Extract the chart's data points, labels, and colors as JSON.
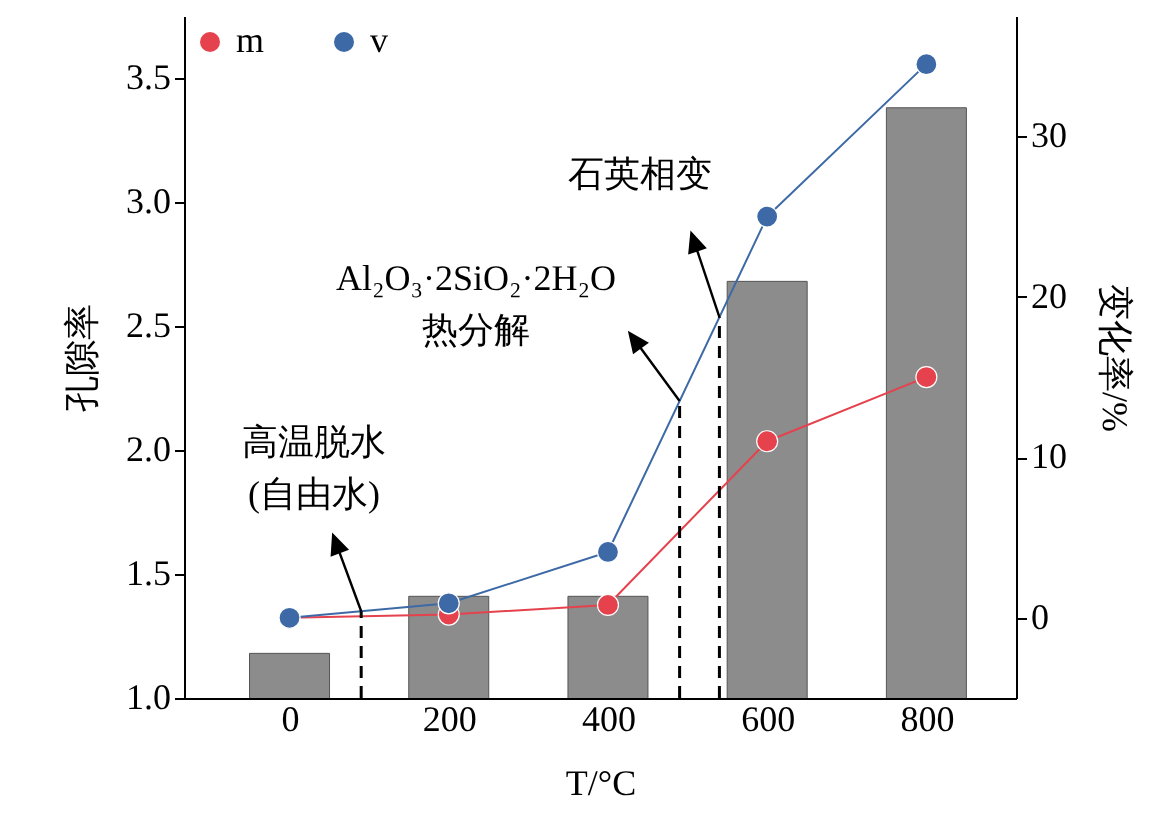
{
  "chart_data": {
    "type": "bar",
    "x": [
      0,
      200,
      400,
      600,
      800
    ],
    "xlim": [
      -120,
      900
    ],
    "xticks": [
      0,
      200,
      400,
      600,
      800
    ],
    "xlabel": "T/°C",
    "ylabel": "孔隙率",
    "y2label": "变化率/%",
    "ylim": [
      1.0,
      3.75
    ],
    "yticks": [
      {
        "value": 1.0,
        "label": "1.0"
      },
      {
        "value": 1.5,
        "label": "1.5"
      },
      {
        "value": 2.0,
        "label": "2.0"
      },
      {
        "value": 2.5,
        "label": "2.5"
      },
      {
        "value": 3.0,
        "label": "3.0"
      },
      {
        "value": 3.5,
        "label": "3.5"
      }
    ],
    "y2lim": [
      -5,
      37.5
    ],
    "y2ticks": [
      0,
      10,
      20,
      30
    ],
    "legend": "top left",
    "marker": "circle",
    "series": [
      {
        "color": "#8c8c8c",
        "values": [
          1.18,
          1.41,
          1.41,
          2.68,
          3.38
        ]
      },
      {
        "type": "line",
        "name": "m",
        "color": "#e5424d",
        "axis": "y2",
        "values": [
          0,
          0.2,
          0.8,
          11,
          15
        ]
      },
      {
        "type": "line",
        "name": "v",
        "color": "#3d6aa6",
        "axis": "y2",
        "values": [
          0,
          0.9,
          4.1,
          25,
          34.5
        ]
      }
    ],
    "ref_lines": [
      {
        "axis": "x",
        "value": 90,
        "line_style": "dashed"
      },
      {
        "axis": "x",
        "value": 490,
        "line_style": "dashed"
      },
      {
        "axis": "x",
        "value": 540,
        "line_style": "dashed"
      }
    ],
    "annotations": [
      "高温脱水\n(自由水)",
      "Al₂O₃·2SiO₂·2H₂O\n热分解",
      "石英相变"
    ]
  }
}
